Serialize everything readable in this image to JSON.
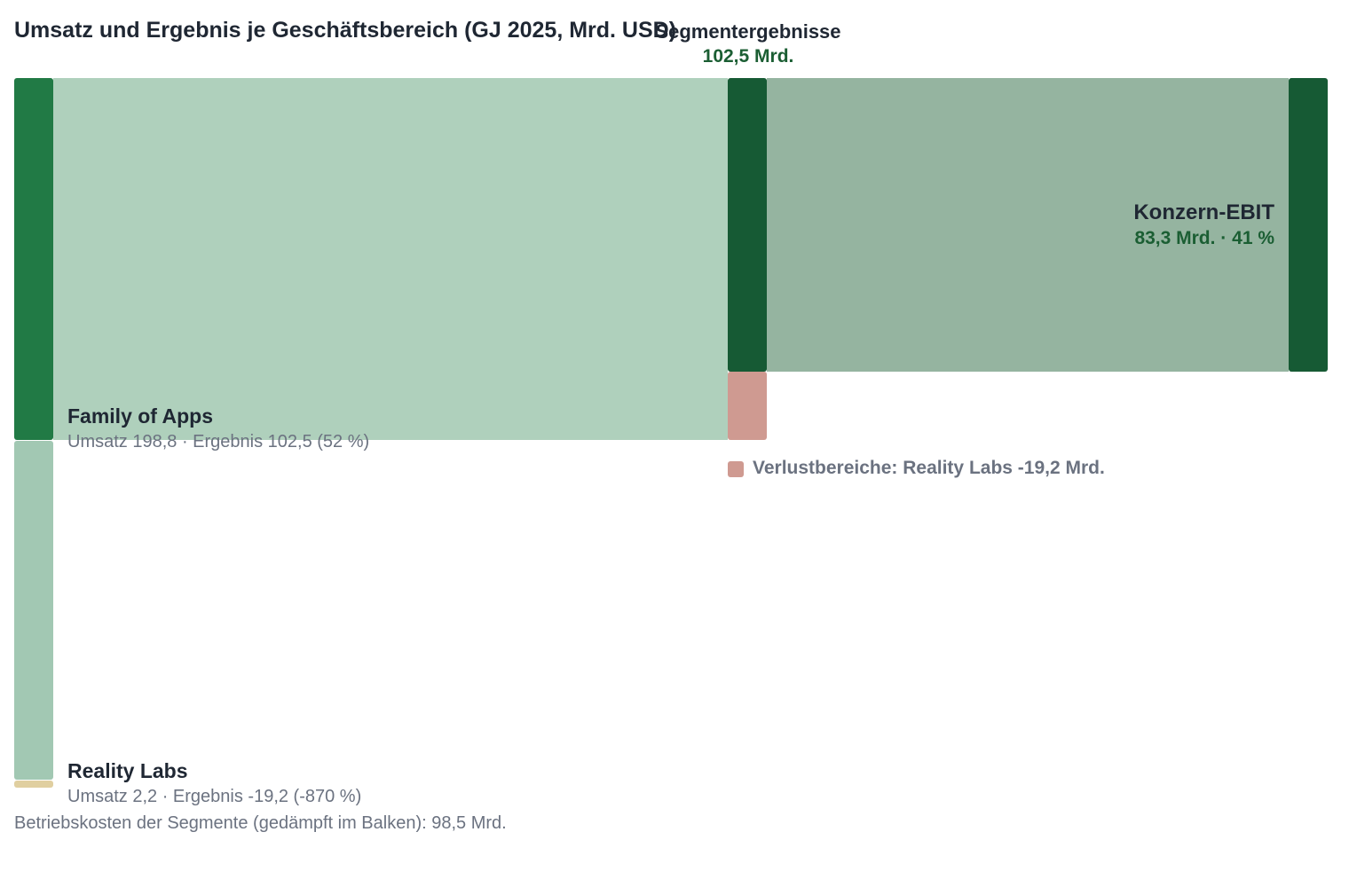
{
  "title": "Umsatz und Ergebnis je Geschäftsbereich (GJ 2025, Mrd. USD)",
  "hub": {
    "title": "Segmentergebnisse",
    "value_label": "102,5 Mrd."
  },
  "segments": [
    {
      "name": "Family of Apps",
      "subtitle": "Umsatz 198,8 · Ergebnis 102,5 (52 %)",
      "revenue": 198.8,
      "result": 102.5,
      "margin_pct": 52
    },
    {
      "name": "Reality Labs",
      "subtitle": "Umsatz 2,2 · Ergebnis -19,2 (-870 %)",
      "revenue": 2.2,
      "result": -19.2,
      "margin_pct": -870
    }
  ],
  "ebit": {
    "name": "Konzern-EBIT",
    "value_label": "83,3 Mrd. · 41 %",
    "value": 83.3,
    "margin_pct": 41
  },
  "loss_legend": {
    "label": "Verlustbereiche: Reality Labs -19,2 Mrd.",
    "value": -19.2
  },
  "operating_costs": {
    "label": "Betriebskosten der Segmente (gedämpft im Balken): 98,5 Mrd.",
    "value": 98.5
  },
  "colors": {
    "fam_node": "#217a45",
    "fam_link": "#afd0bc",
    "rl_cost_node": "#a2c8b3",
    "rl_node": "#e0cfa0",
    "hub_node": "#165a34",
    "loss_node": "#cf9a91",
    "ebit_link": "#95b4a0",
    "ebit_node": "#165a34"
  }
}
